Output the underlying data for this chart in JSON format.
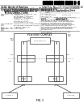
{
  "bg_color": "#ffffff",
  "barcode_color": "#000000",
  "text_color": "#333333",
  "diagram_color": "#444444",
  "header_left_line1": "(19)  United States",
  "header_left_line2": "(12)  Patent Application Publication",
  "header_left_line3": "                    (10) Pub. No. ...",
  "header_right_line1": "(10)  Pub. No.: US 2013/0346688 A1",
  "header_right_line2": "(43)  Pub. Date:         Jun. 7, 2013",
  "section_54_label": "(54)",
  "section_54_text": "CABLE REDUNDANCY AND FAILOVER FOR\nMULTI-LANE PCI EXPRESS IO\nINTERCONNECTIONS",
  "section_75_label": "(75)",
  "section_75_text": "Inventors:  ROBERTO A. BATEY, JR.,\n                  Austin, TX (US);\n                  MATTHEW J. ELKINS,\n                  Portland, OR (US);\n                  JOSEPH C. DZIEDZIC,\n                  Austin, TX (US);\n                  DAVID W. SHEA,\n                  Round Rock, TX (US)",
  "section_73_label": "(73)",
  "section_73_text": "Assignee:  INTERNATIONAL BUSINESS\n                  MACHINES CORPORATION,\n                  Armonk, NY (US)",
  "section_21_label": "(21)",
  "section_21_text": "Appl. No.:  13/527,809",
  "section_22_label": "(22)",
  "section_22_text": "Filed:  Jun. 20, 2012",
  "right_related_title": "Related U.S. Application Data",
  "right_related_text": "(63)  Continuation of application No.\n        13/527,809, filed on Jun. 20, 2012.",
  "right_51_text": "(51)  Int. Cl.\n        G06F 13/40              (2006.01)",
  "right_52_text": "(52)  U.S. Cl.\n        CPC ........  G06F 13/4068 (2013.01)",
  "right_57_text": "(57)                  ABSTRACT",
  "abstract_body": "Related to an apparatus for cable redundancy\nand hot plug failover in a computing system.\nIn an embodiment, a method for cable\nredundancy and failover for a multi-lane PCI\nExpress interconnection including the steps\nof monitoring a first cable for errors or\nfailures. The method also including detecting\na failure in the first cable and switching\ndata transmission from the first cable to a\nsecond cable.\n\nOther embodiments are described and claimed."
}
